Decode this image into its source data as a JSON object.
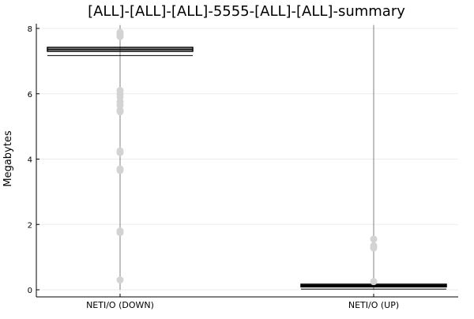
{
  "chart_data": {
    "type": "box",
    "title": "[ALL]-[ALL]-[ALL]-5555-[ALL]-[ALL]-summary",
    "xlabel": "",
    "ylabel": "Megabytes",
    "categories": [
      "NETI/O (DOWN)",
      "NETI/O (UP)"
    ],
    "ylim": [
      -0.2,
      8.1
    ],
    "yticks": [
      0,
      2,
      4,
      6,
      8
    ],
    "grid": true,
    "legend": "none",
    "boxes": [
      {
        "category": "NETI/O (DOWN)",
        "whisker_low": 0.0,
        "q1": 7.3,
        "median": 7.36,
        "q3": 7.42,
        "whisker_high": 8.1,
        "lower_fence": 7.17,
        "outliers": [
          0.3,
          1.75,
          1.8,
          3.65,
          3.7,
          4.2,
          4.25,
          5.45,
          5.5,
          5.65,
          5.75,
          5.9,
          6.0,
          6.1,
          7.75,
          7.82,
          7.88
        ]
      },
      {
        "category": "NETI/O (UP)",
        "whisker_low": 0.0,
        "q1": 0.09,
        "median": 0.13,
        "q3": 0.17,
        "whisker_high": 8.1,
        "lower_fence": 0.02,
        "outliers": [
          0.25,
          1.28,
          1.35,
          1.55
        ]
      }
    ],
    "colors": {
      "box_stroke": "#000000",
      "whisker": "#808080",
      "outlier": "#d3d3d3",
      "grid": "#ebebeb",
      "axis": "#000000"
    }
  }
}
